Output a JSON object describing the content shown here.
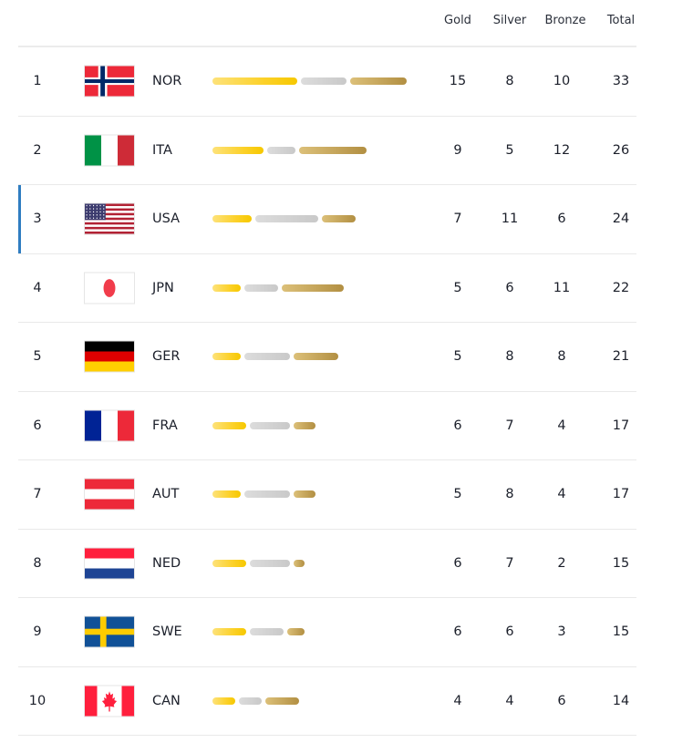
{
  "header": {
    "gold_label": "Gold",
    "silver_label": "Silver",
    "bronze_label": "Bronze",
    "total_label": "Total"
  },
  "colors": {
    "gold": "#fcd12a",
    "silver": "#c9c9c9",
    "bronze": "#b99648",
    "highlight": "#2f7dc1"
  },
  "rows": [
    {
      "rank": "1",
      "code": "NOR",
      "flag": "norway-flag-icon",
      "gold": "15",
      "silver": "8",
      "bronze": "10",
      "total": "33"
    },
    {
      "rank": "2",
      "code": "ITA",
      "flag": "italy-flag-icon",
      "gold": "9",
      "silver": "5",
      "bronze": "12",
      "total": "26"
    },
    {
      "rank": "3",
      "code": "USA",
      "flag": "usa-flag-icon",
      "gold": "7",
      "silver": "11",
      "bronze": "6",
      "total": "24",
      "highlighted": true
    },
    {
      "rank": "4",
      "code": "JPN",
      "flag": "japan-flag-icon",
      "gold": "5",
      "silver": "6",
      "bronze": "11",
      "total": "22"
    },
    {
      "rank": "5",
      "code": "GER",
      "flag": "germany-flag-icon",
      "gold": "5",
      "silver": "8",
      "bronze": "8",
      "total": "21"
    },
    {
      "rank": "6",
      "code": "FRA",
      "flag": "france-flag-icon",
      "gold": "6",
      "silver": "7",
      "bronze": "4",
      "total": "17"
    },
    {
      "rank": "7",
      "code": "AUT",
      "flag": "austria-flag-icon",
      "gold": "5",
      "silver": "8",
      "bronze": "4",
      "total": "17"
    },
    {
      "rank": "8",
      "code": "NED",
      "flag": "netherlands-flag-icon",
      "gold": "6",
      "silver": "7",
      "bronze": "2",
      "total": "15"
    },
    {
      "rank": "9",
      "code": "SWE",
      "flag": "sweden-flag-icon",
      "gold": "6",
      "silver": "6",
      "bronze": "3",
      "total": "15"
    },
    {
      "rank": "10",
      "code": "CAN",
      "flag": "canada-flag-icon",
      "gold": "4",
      "silver": "4",
      "bronze": "6",
      "total": "14"
    }
  ],
  "chart_data": {
    "type": "bar",
    "title": "",
    "xlabel": "",
    "ylabel": "",
    "stacked": true,
    "orientation": "horizontal",
    "categories": [
      "NOR",
      "ITA",
      "USA",
      "JPN",
      "GER",
      "FRA",
      "AUT",
      "NED",
      "SWE",
      "CAN"
    ],
    "series": [
      {
        "name": "Gold",
        "color": "#fcd12a",
        "values": [
          15,
          9,
          7,
          5,
          5,
          6,
          5,
          6,
          6,
          4
        ]
      },
      {
        "name": "Silver",
        "color": "#c9c9c9",
        "values": [
          8,
          5,
          11,
          6,
          8,
          7,
          8,
          7,
          6,
          4
        ]
      },
      {
        "name": "Bronze",
        "color": "#b99648",
        "values": [
          10,
          12,
          6,
          11,
          8,
          4,
          4,
          2,
          3,
          6
        ]
      }
    ],
    "totals": [
      33,
      26,
      24,
      22,
      21,
      17,
      17,
      15,
      15,
      14
    ],
    "ranks": [
      1,
      2,
      3,
      4,
      5,
      6,
      7,
      8,
      9,
      10
    ],
    "legend": [
      "Gold",
      "Silver",
      "Bronze",
      "Total"
    ],
    "grid": false
  }
}
